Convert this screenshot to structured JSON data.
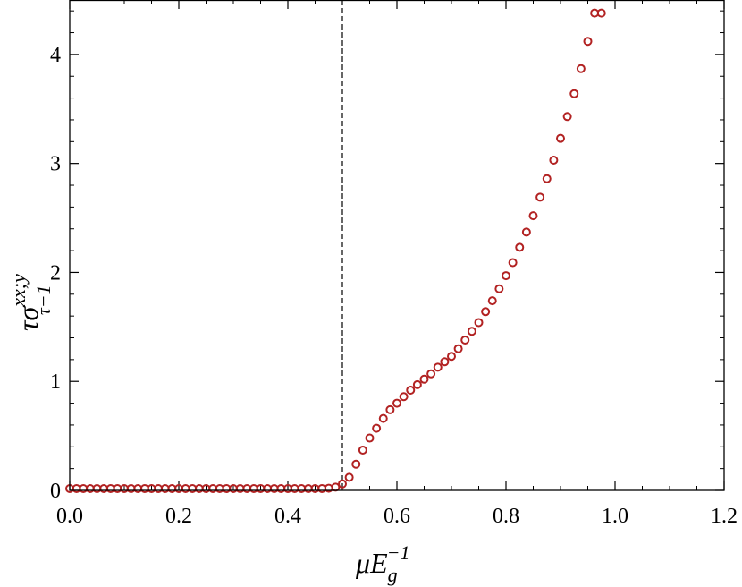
{
  "chart_data": {
    "type": "scatter",
    "xlim": [
      0.0,
      1.2
    ],
    "ylim": [
      0,
      4.5
    ],
    "x_ticks": [
      "0.0",
      "0.2",
      "0.4",
      "0.6",
      "0.8",
      "1.0",
      "1.2"
    ],
    "y_ticks": [
      "0",
      "1",
      "2",
      "3",
      "4"
    ],
    "x_tick_values": [
      0.0,
      0.2,
      0.4,
      0.6,
      0.8,
      1.0,
      1.2
    ],
    "y_tick_values": [
      0,
      1,
      2,
      3,
      4
    ],
    "xlabel": {
      "base": "μE",
      "sub": "g",
      "sup": "−1"
    },
    "ylabel": {
      "base": "τσ",
      "sup": "xx;y",
      "sub": "τ−1"
    },
    "grid": false,
    "reference_line": {
      "x": 0.5,
      "style": "dashed",
      "color": "#000000"
    },
    "marker": {
      "shape": "open-circle",
      "color": "#b22222"
    },
    "series": [
      {
        "x": [
          0.0,
          0.0125,
          0.025,
          0.0375,
          0.05,
          0.0625,
          0.075,
          0.0875,
          0.1,
          0.1125,
          0.125,
          0.1375,
          0.15,
          0.1625,
          0.175,
          0.1875,
          0.2,
          0.2125,
          0.225,
          0.2375,
          0.25,
          0.2625,
          0.275,
          0.2875,
          0.3,
          0.3125,
          0.325,
          0.3375,
          0.35,
          0.3625,
          0.375,
          0.3875,
          0.4,
          0.4125,
          0.425,
          0.4375,
          0.45,
          0.4625,
          0.475,
          0.4875,
          0.5,
          0.5125,
          0.525,
          0.5375,
          0.55,
          0.5625,
          0.575,
          0.5875,
          0.6,
          0.6125,
          0.625,
          0.6375,
          0.65,
          0.6625,
          0.675,
          0.6875,
          0.7,
          0.7125,
          0.725,
          0.7375,
          0.75,
          0.7625,
          0.775,
          0.7875,
          0.8,
          0.8125,
          0.825,
          0.8375,
          0.85,
          0.8625,
          0.875,
          0.8875,
          0.9,
          0.9125,
          0.925,
          0.9375,
          0.95,
          0.9625,
          0.975
        ],
        "y": [
          0.01,
          0.01,
          0.01,
          0.01,
          0.01,
          0.01,
          0.01,
          0.01,
          0.01,
          0.01,
          0.01,
          0.01,
          0.01,
          0.01,
          0.01,
          0.01,
          0.01,
          0.01,
          0.01,
          0.01,
          0.01,
          0.01,
          0.01,
          0.01,
          0.01,
          0.01,
          0.01,
          0.01,
          0.01,
          0.01,
          0.01,
          0.01,
          0.01,
          0.01,
          0.01,
          0.01,
          0.01,
          0.01,
          0.02,
          0.03,
          0.06,
          0.12,
          0.24,
          0.37,
          0.48,
          0.57,
          0.66,
          0.74,
          0.8,
          0.86,
          0.92,
          0.97,
          1.02,
          1.07,
          1.13,
          1.18,
          1.23,
          1.3,
          1.38,
          1.46,
          1.54,
          1.64,
          1.74,
          1.85,
          1.97,
          2.09,
          2.23,
          2.37,
          2.52,
          2.69,
          2.86,
          3.03,
          3.23,
          3.43,
          3.64,
          3.87,
          4.12,
          4.38,
          4.38
        ]
      }
    ]
  }
}
